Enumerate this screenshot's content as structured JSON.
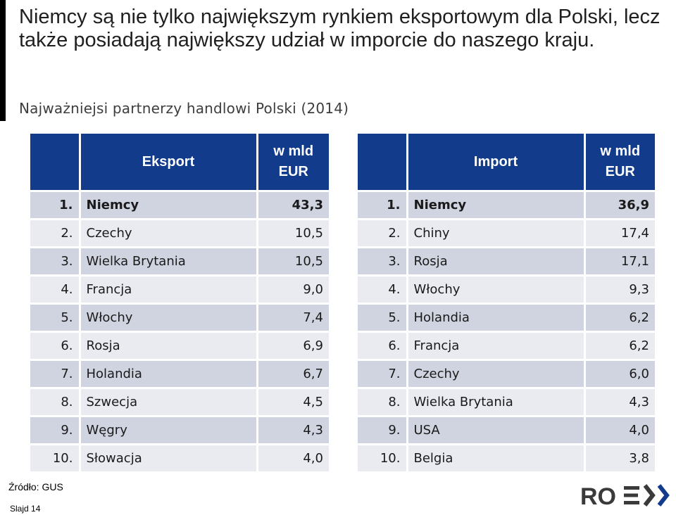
{
  "headline": "Niemcy są nie tylko największym rynkiem eksportowym dla Polski, lecz także posiadają największy udział w imporcie do naszego kraju.",
  "subtitle": "Najważniejsi partnerzy handlowi Polski (2014)",
  "export": {
    "title": "Eksport",
    "unit_line1": "w mld",
    "unit_line2": "EUR",
    "rows": [
      {
        "rank": "1.",
        "country": "Niemcy",
        "value": "43,3"
      },
      {
        "rank": "2.",
        "country": "Czechy",
        "value": "10,5"
      },
      {
        "rank": "3.",
        "country": "Wielka Brytania",
        "value": "10,5"
      },
      {
        "rank": "4.",
        "country": "Francja",
        "value": "9,0"
      },
      {
        "rank": "5.",
        "country": "Włochy",
        "value": "7,4"
      },
      {
        "rank": "6.",
        "country": "Rosja",
        "value": "6,9"
      },
      {
        "rank": "7.",
        "country": "Holandia",
        "value": "6,7"
      },
      {
        "rank": "8.",
        "country": "Szwecja",
        "value": "4,5"
      },
      {
        "rank": "9.",
        "country": "Węgry",
        "value": "4,3"
      },
      {
        "rank": "10.",
        "country": "Słowacja",
        "value": "4,0"
      }
    ]
  },
  "import": {
    "title": "Import",
    "unit_line1": "w mld",
    "unit_line2": "EUR",
    "rows": [
      {
        "rank": "1.",
        "country": "Niemcy",
        "value": "36,9"
      },
      {
        "rank": "2.",
        "country": "Chiny",
        "value": "17,4"
      },
      {
        "rank": "3.",
        "country": "Rosja",
        "value": "17,1"
      },
      {
        "rank": "4.",
        "country": "Włochy",
        "value": "9,3"
      },
      {
        "rank": "5.",
        "country": "Holandia",
        "value": "6,2"
      },
      {
        "rank": "6.",
        "country": "Francja",
        "value": "6,2"
      },
      {
        "rank": "7.",
        "country": "Czechy",
        "value": "6,0"
      },
      {
        "rank": "8.",
        "country": "Wielka Brytania",
        "value": "4,3"
      },
      {
        "rank": "9.",
        "country": "USA",
        "value": "4,0"
      },
      {
        "rank": "10.",
        "country": "Belgia",
        "value": "3,8"
      }
    ]
  },
  "source": "Źródło: GUS",
  "slide_number": "Slajd 14",
  "logo_text": "ROEX",
  "colors": {
    "header_bg": "#123b8c",
    "row_dark": "#d0d4e0",
    "row_light": "#e9ebf1",
    "logo_accent": "#123b8c"
  }
}
